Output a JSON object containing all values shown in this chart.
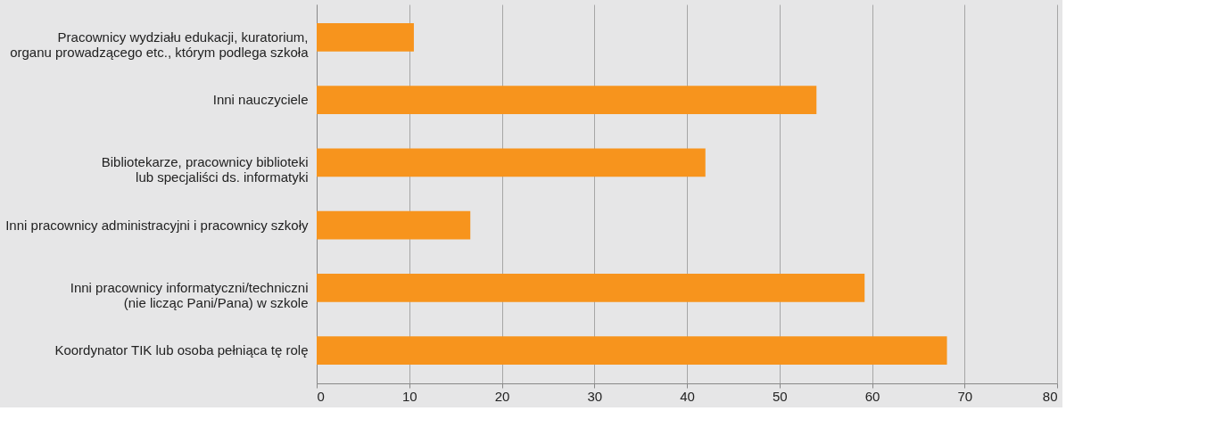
{
  "chart_data": {
    "type": "bar",
    "orientation": "horizontal",
    "categories": [
      "Pracownicy wydziału edukacji, kuratorium,\norganu prowadzącego etc., którym podlega szkoła",
      "Inni nauczyciele",
      "Bibliotekarze, pracownicy biblioteki\nlub  specjaliści ds. informatyki",
      "Inni pracownicy administracyjni i pracownicy szkoły",
      "Inni pracownicy informatyczni/techniczni\n(nie licząc Pani/Pana) w szkole",
      "Koordynator TIK lub osoba pełniąca tę rolę"
    ],
    "values": [
      10.5,
      54,
      42,
      16.6,
      59.2,
      68.1
    ],
    "color": "#f7941d",
    "xlim": [
      0,
      80
    ],
    "xticks": [
      0,
      10,
      20,
      30,
      40,
      50,
      60,
      70,
      80
    ],
    "grid": "x"
  }
}
